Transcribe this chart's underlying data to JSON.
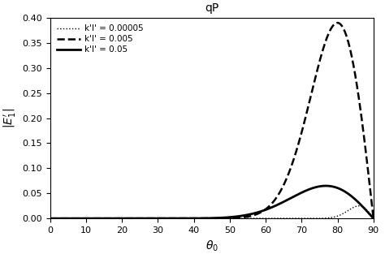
{
  "title": "qP",
  "xlabel": "$\\theta_0$",
  "ylabel": "$|E^{\\prime}_1|$",
  "xlim": [
    0,
    90
  ],
  "ylim": [
    0,
    0.4
  ],
  "xticks": [
    0,
    10,
    20,
    30,
    40,
    50,
    60,
    70,
    80,
    90
  ],
  "yticks": [
    0,
    0.05,
    0.1,
    0.15,
    0.2,
    0.25,
    0.3,
    0.35,
    0.4
  ],
  "legend_labels": [
    "k'l' = 0.00005",
    "k'l' = 0.005",
    "k'l' = 0.05"
  ],
  "linestyles": [
    "dotted",
    "dashed",
    "solid"
  ],
  "linewidths": [
    1.0,
    1.8,
    2.0
  ],
  "curves": [
    {
      "A": 0.025,
      "p": 200,
      "q": 1
    },
    {
      "A": 0.39,
      "p": 32,
      "q": 1
    },
    {
      "A": 0.065,
      "p": 18,
      "q": 1
    }
  ],
  "background_color": "#ffffff"
}
